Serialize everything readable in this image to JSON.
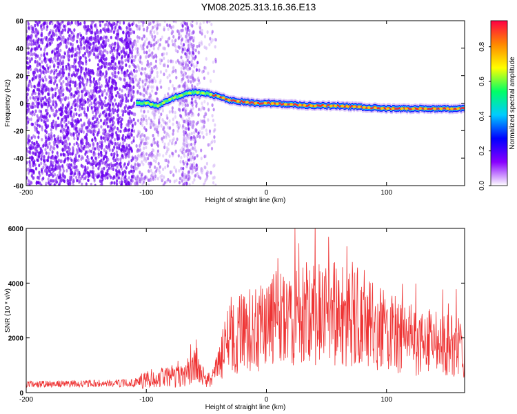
{
  "title": "YM08.2025.313.16.36.E13",
  "colors": {
    "snr_line": "#ee3333",
    "axis": "#000000"
  },
  "chart_data": [
    {
      "type": "heatmap",
      "name": "spectrogram",
      "title": "YM08.2025.313.16.36.E13",
      "xlabel": "Height of straight line (km)",
      "ylabel": "Frequency (Hz)",
      "xlim": [
        -200,
        165
      ],
      "ylim": [
        -60,
        60
      ],
      "x_ticks": [
        -200,
        -100,
        0,
        100
      ],
      "y_ticks": [
        -60,
        -40,
        -20,
        0,
        20,
        40,
        60
      ],
      "colormap": [
        "#ffffff",
        "#8800ff",
        "#0000ff",
        "#00ccff",
        "#00ff66",
        "#ffff00",
        "#ff8800",
        "#ff0044"
      ],
      "colorbar": {
        "label": "Normalized spectral amplitude",
        "range": [
          0,
          0.95
        ],
        "ticks": [
          0.0,
          0.2,
          0.4,
          0.6,
          0.8
        ]
      },
      "ridge": {
        "x": [
          -108,
          -100,
          -90,
          -80,
          -70,
          -60,
          -50,
          -40,
          -30,
          -20,
          -10,
          0,
          20,
          40,
          60,
          80,
          100,
          120,
          140,
          165
        ],
        "freq": [
          0,
          0,
          -2,
          3,
          6,
          8,
          7,
          5,
          2,
          1,
          0,
          0,
          -1,
          -2,
          -2,
          -3,
          -4,
          -4,
          -4,
          -4
        ]
      }
    },
    {
      "type": "line",
      "name": "snr",
      "xlabel": "Height of straight line (km)",
      "ylabel": "SNR (10 * v/v)",
      "xlim": [
        -200,
        165
      ],
      "ylim": [
        0,
        6000
      ],
      "x_ticks": [
        -200,
        -100,
        0,
        100
      ],
      "y_ticks": [
        0,
        2000,
        4000,
        6000
      ],
      "envelope": {
        "x": [
          -200,
          -150,
          -110,
          -100,
          -90,
          -80,
          -70,
          -62,
          -58,
          -55,
          -50,
          -45,
          -40,
          -35,
          -30,
          -20,
          -10,
          0,
          10,
          20,
          30,
          40,
          50,
          60,
          70,
          80,
          90,
          100,
          110,
          120,
          130,
          140,
          150,
          165
        ],
        "y": [
          330,
          350,
          380,
          650,
          700,
          720,
          750,
          1100,
          1300,
          900,
          500,
          700,
          1200,
          2100,
          2500,
          2800,
          3000,
          3300,
          3500,
          3700,
          3800,
          3900,
          3800,
          3700,
          3500,
          3300,
          3100,
          2900,
          2700,
          2500,
          2400,
          2300,
          2250,
          2200
        ]
      }
    }
  ]
}
